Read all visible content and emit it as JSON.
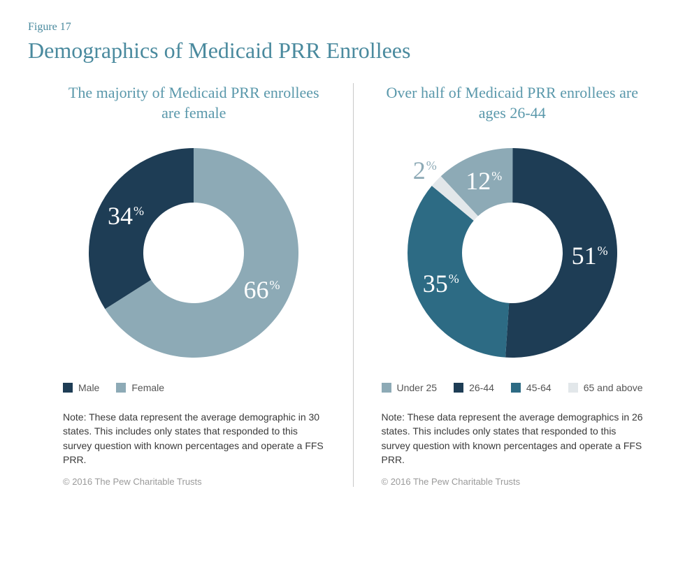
{
  "figure_label": "Figure 17",
  "figure_title": "Demographics of Medicaid PRR Enrollees",
  "colors": {
    "title_color": "#4a8a9e",
    "panel_title_color": "#5a98ab",
    "divider": "#c8c8c8",
    "note_text": "#3a3a3a",
    "copyright_text": "#9a9a9a",
    "label_text": "#ffffff"
  },
  "donut_style": {
    "outer_radius": 150,
    "inner_radius": 72,
    "label_fontsize": 36,
    "pct_fontsize": 18
  },
  "panels": [
    {
      "id": "gender",
      "title": "The majority of Medicaid PRR enrollees are female",
      "type": "donut",
      "start_angle_deg": 0,
      "slices": [
        {
          "label": "Female",
          "value": 66,
          "color": "#8daab6"
        },
        {
          "label": "Male",
          "value": 34,
          "color": "#1e3d55"
        }
      ],
      "legend": [
        {
          "label": "Male",
          "color": "#1e3d55"
        },
        {
          "label": "Female",
          "color": "#8daab6"
        }
      ],
      "note": "Note: These data represent the average demographic in 30 states. This includes only states that responded to this survey question with known percentages and operate a FFS PRR.",
      "copyright": "© 2016 The Pew Charitable Trusts"
    },
    {
      "id": "age",
      "title": "Over half of Medicaid PRR enrollees are ages 26-44",
      "type": "donut",
      "start_angle_deg": -43,
      "slices": [
        {
          "label": "Under 25",
          "value": 12,
          "color": "#8daab6"
        },
        {
          "label": "26-44",
          "value": 51,
          "color": "#1e3d55"
        },
        {
          "label": "45-64",
          "value": 35,
          "color": "#2d6b84"
        },
        {
          "label": "65 and above",
          "value": 2,
          "color": "#e2e7ea"
        }
      ],
      "legend": [
        {
          "label": "Under 25",
          "color": "#8daab6"
        },
        {
          "label": "26-44",
          "color": "#1e3d55"
        },
        {
          "label": "45-64",
          "color": "#2d6b84"
        },
        {
          "label": "65 and above",
          "color": "#e2e7ea"
        }
      ],
      "note": "Note: These data represent the average demographics in 26 states. This includes only states that responded to this survey question with known percentages and operate a FFS PRR.",
      "copyright": "© 2016 The Pew Charitable Trusts"
    }
  ]
}
